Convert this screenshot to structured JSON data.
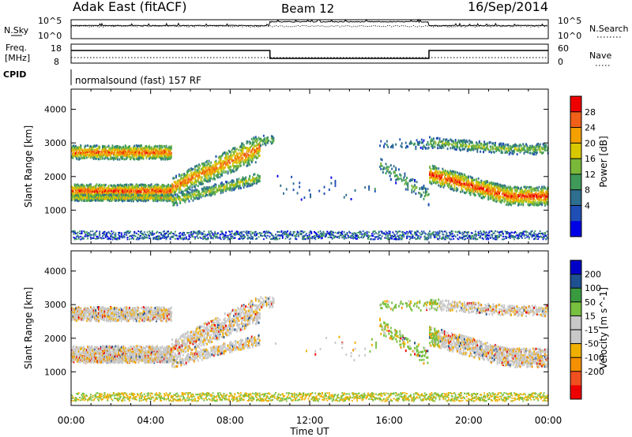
{
  "header": {
    "station": "Adak East (fitACF)",
    "beam": "Beam 12",
    "date": "16/Sep/2014"
  },
  "nsky_panel": {
    "left_label": "N.Sky",
    "left_ticks": [
      "10^5",
      "10^0"
    ],
    "right_label": "N.Search",
    "right_ticks": [
      "10^5",
      "10^0"
    ]
  },
  "freq_panel": {
    "left_label_1": "Freq.",
    "left_label_2": "[MHz]",
    "left_ticks": [
      "18",
      "8"
    ],
    "right_label": "Nave",
    "right_ticks": [
      "60",
      "0"
    ]
  },
  "cpid_panel": {
    "label": "CPID",
    "text": "normalsound (fast) 157 RF"
  },
  "x_axis": {
    "label": "Time UT",
    "ticks": [
      "00:00",
      "04:00",
      "08:00",
      "12:00",
      "16:00",
      "20:00",
      "00:00"
    ]
  },
  "colors": {
    "power_scale": [
      "#0000e6",
      "#1f4fb4",
      "#2e6e8e",
      "#3f9a5a",
      "#7ab83a",
      "#d8c800",
      "#f4a000",
      "#f06018",
      "#ee0000"
    ],
    "velocity_scale": [
      "#ee0000",
      "#f05020",
      "#f59000",
      "#f0b000",
      "#c8c8c8",
      "#c8c8c8",
      "#78c040",
      "#3a9a40",
      "#1f5090",
      "#0000c8"
    ]
  },
  "chart_data": [
    {
      "type": "line",
      "title": "N.Sky / N.Search",
      "xlabel": "",
      "ylabel": "N.Sky",
      "y_scale": "log",
      "x": [
        "00:00",
        "10:00",
        "10:00",
        "18:00",
        "18:00",
        "24:00"
      ],
      "series": [
        {
          "name": "N.Sky",
          "values": [
            3000,
            3000,
            30000,
            30000,
            3000,
            3000
          ]
        }
      ]
    },
    {
      "type": "line",
      "title": "Freq. / Nave",
      "ylabel": "Freq. [MHz]",
      "ylim": [
        8,
        18
      ],
      "x": [
        "00:00",
        "10:00",
        "10:00",
        "18:00",
        "18:00",
        "24:00"
      ],
      "series": [
        {
          "name": "Freq.",
          "values": [
            15,
            15,
            10,
            10,
            15,
            15
          ]
        },
        {
          "name": "Nave",
          "values": [
            8,
            8,
            8,
            8,
            8,
            8
          ]
        }
      ]
    },
    {
      "type": "heatmap",
      "title": "Power",
      "xlabel": "Time UT",
      "ylabel": "Slant Range [km]",
      "xlim": [
        0,
        24
      ],
      "ylim": [
        0,
        4600
      ],
      "yticks": [
        "1000",
        "2000",
        "3000",
        "4000"
      ],
      "colorbar_label": "Power [dB]",
      "colorbar_ticks": [
        "4",
        "8",
        "12",
        "16",
        "20",
        "24",
        "28"
      ]
    },
    {
      "type": "heatmap",
      "title": "Velocity",
      "xlabel": "Time UT",
      "ylabel": "Slant Range [km]",
      "xlim": [
        0,
        24
      ],
      "ylim": [
        0,
        4600
      ],
      "yticks": [
        "1000",
        "2000",
        "3000",
        "4000"
      ],
      "colorbar_label": "Velocity [m s^-1]",
      "colorbar_ticks": [
        "200",
        "100",
        "50",
        "15",
        "-15",
        "-50",
        "-100",
        "-200"
      ]
    }
  ]
}
